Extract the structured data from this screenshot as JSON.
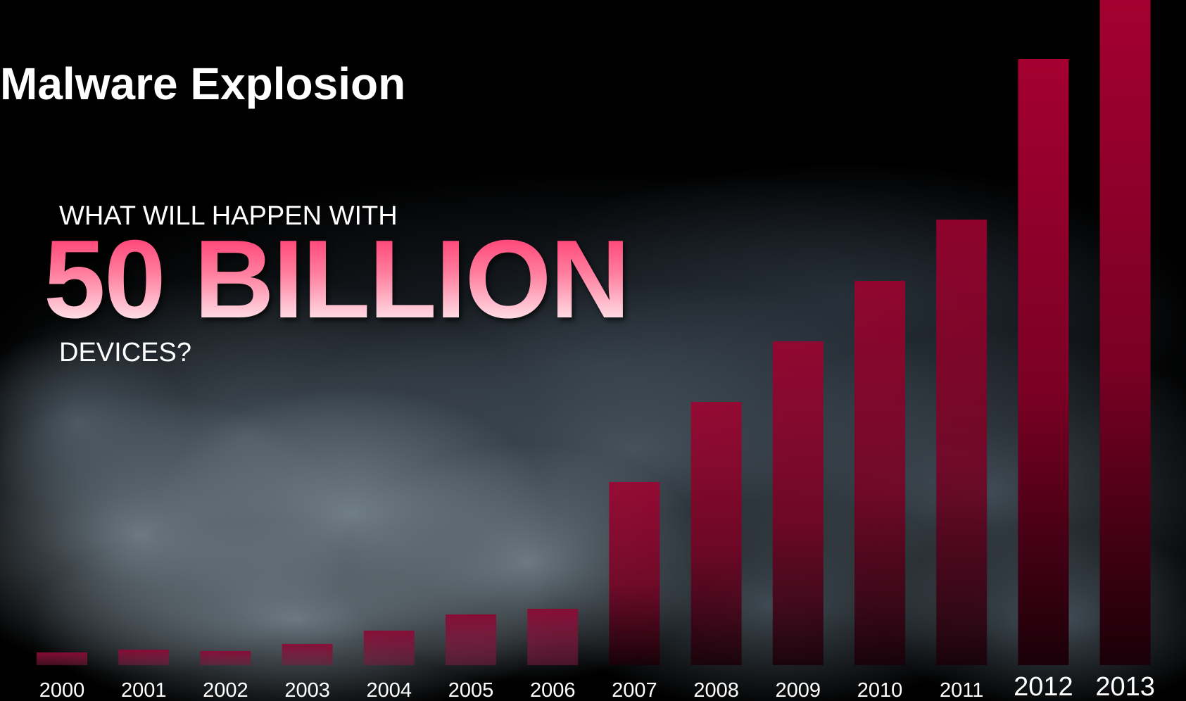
{
  "title": "Malware Explosion",
  "tagline": {
    "top": "WHAT WILL HAPPEN WITH",
    "big": "50 BILLION",
    "bottom": "DEVICES?"
  },
  "colors": {
    "background": "#000000",
    "bar_top": "#a4002f",
    "bar_bottom": "#1a0008",
    "text": "#ffffff"
  },
  "chart_data": {
    "type": "bar",
    "title": "",
    "xlabel": "",
    "ylabel": "",
    "categories": [
      "2000",
      "2001",
      "2002",
      "2003",
      "2004",
      "2005",
      "2006",
      "2007",
      "2008",
      "2009",
      "2010",
      "2011",
      "2012",
      "2013"
    ],
    "values": [
      18,
      22,
      20,
      30,
      49,
      72,
      80,
      260,
      374,
      460,
      546,
      633,
      861,
      945
    ],
    "ylim": [
      0,
      945
    ],
    "grid": false,
    "legend": "none",
    "emphasized_categories": [
      "2012",
      "2013"
    ]
  }
}
